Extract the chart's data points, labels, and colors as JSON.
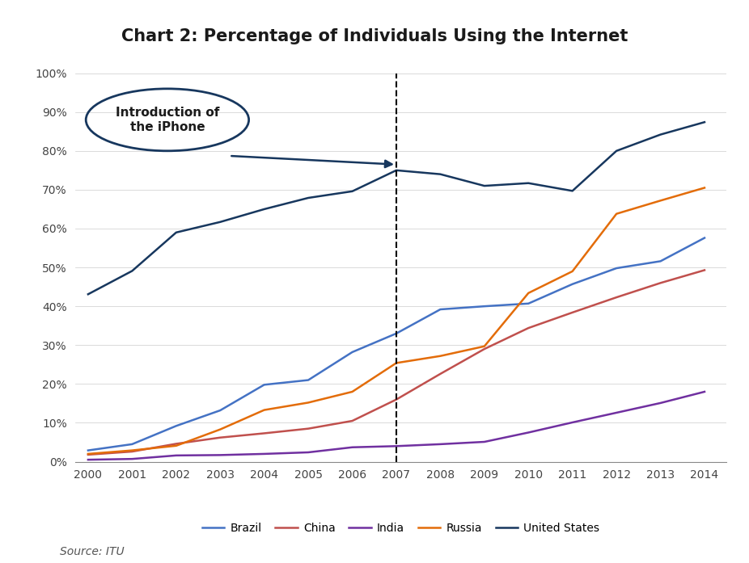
{
  "title": "Chart 2: Percentage of Individuals Using the Internet",
  "source": "Source: ITU",
  "years": [
    2000,
    2001,
    2002,
    2003,
    2004,
    2005,
    2006,
    2007,
    2008,
    2009,
    2010,
    2011,
    2012,
    2013,
    2014
  ],
  "brazil": [
    2.9,
    4.5,
    9.2,
    13.2,
    19.8,
    21.0,
    28.2,
    33.0,
    39.2,
    40.0,
    40.7,
    45.7,
    49.8,
    51.6,
    57.6
  ],
  "china": [
    1.8,
    2.6,
    4.6,
    6.2,
    7.3,
    8.5,
    10.5,
    16.0,
    22.6,
    29.0,
    34.4,
    38.4,
    42.3,
    46.0,
    49.3
  ],
  "india": [
    0.5,
    0.7,
    1.6,
    1.7,
    2.0,
    2.4,
    3.7,
    4.0,
    4.5,
    5.1,
    7.5,
    10.1,
    12.6,
    15.1,
    18.0
  ],
  "russia": [
    2.0,
    2.9,
    4.1,
    8.3,
    13.3,
    15.2,
    18.0,
    25.4,
    27.2,
    29.7,
    43.4,
    49.0,
    63.8,
    67.2,
    70.5
  ],
  "united_states": [
    43.1,
    49.1,
    59.0,
    61.7,
    65.0,
    67.9,
    69.6,
    75.0,
    74.0,
    71.0,
    71.7,
    69.7,
    80.0,
    84.2,
    87.4
  ],
  "colors": {
    "brazil": "#4472C4",
    "china": "#C0504D",
    "india": "#7030A0",
    "russia": "#E36C09",
    "united_states": "#17375E"
  },
  "annotation_text": "Introduction of\nthe iPhone",
  "vline_x": 2007,
  "ylim": [
    0,
    100
  ],
  "xlim": [
    1999.7,
    2014.5
  ],
  "yticks": [
    0,
    10,
    20,
    30,
    40,
    50,
    60,
    70,
    80,
    90,
    100
  ],
  "ytick_labels": [
    "0%",
    "10%",
    "20%",
    "30%",
    "40%",
    "50%",
    "60%",
    "70%",
    "80%",
    "90%",
    "100%"
  ]
}
